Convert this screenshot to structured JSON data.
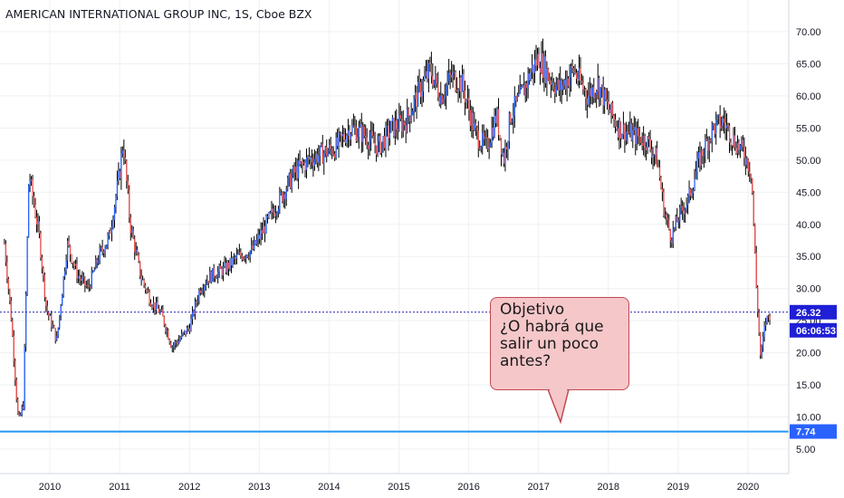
{
  "title": "AMERICAN INTERNATIONAL GROUP INC, 1S, Cboe BZX",
  "colors": {
    "up": "#2962ff",
    "down": "#ef5350",
    "wick": "#000000",
    "grid": "#eef0f3",
    "hline": "#2196f3",
    "priceline": "#1f1fb8",
    "tag": "#2962ff",
    "tag_dark": "#1f1fd6"
  },
  "price_tag": {
    "value": "26.32",
    "time": "06:06:53"
  },
  "level_tag": {
    "value": "7.74"
  },
  "callout": {
    "lines": [
      "Objetivo",
      "¿O habrá que",
      "salir un poco",
      "antes?"
    ]
  },
  "chart_data": {
    "type": "candlestick",
    "title": "AMERICAN INTERNATIONAL GROUP INC, 1S, Cboe BZX",
    "ylim": [
      0,
      75
    ],
    "y_ticks": [
      "5.00",
      "10.00",
      "15.00",
      "20.00",
      "25.00",
      "30.00",
      "35.00",
      "40.00",
      "45.00",
      "50.00",
      "55.00",
      "60.00",
      "65.00",
      "70.00"
    ],
    "x_ticks": [
      "2010",
      "2011",
      "2012",
      "2013",
      "2014",
      "2015",
      "2016",
      "2017",
      "2018",
      "2019",
      "2020"
    ],
    "current_price": 26.32,
    "horizontal_level": 7.74,
    "price_path": [
      [
        2009.35,
        37
      ],
      [
        2009.45,
        25
      ],
      [
        2009.55,
        9
      ],
      [
        2009.62,
        12
      ],
      [
        2009.7,
        48
      ],
      [
        2009.85,
        38
      ],
      [
        2009.95,
        27
      ],
      [
        2010.1,
        22
      ],
      [
        2010.25,
        37
      ],
      [
        2010.4,
        32
      ],
      [
        2010.55,
        30
      ],
      [
        2010.7,
        35
      ],
      [
        2010.85,
        38
      ],
      [
        2011.0,
        48
      ],
      [
        2011.05,
        53
      ],
      [
        2011.15,
        40
      ],
      [
        2011.3,
        32
      ],
      [
        2011.45,
        28
      ],
      [
        2011.6,
        26
      ],
      [
        2011.75,
        21
      ],
      [
        2011.85,
        22
      ],
      [
        2012.0,
        24
      ],
      [
        2012.15,
        30
      ],
      [
        2012.3,
        32
      ],
      [
        2012.5,
        33
      ],
      [
        2012.7,
        35
      ],
      [
        2012.9,
        36
      ],
      [
        2013.1,
        40
      ],
      [
        2013.3,
        44
      ],
      [
        2013.5,
        48
      ],
      [
        2013.7,
        50
      ],
      [
        2013.9,
        51
      ],
      [
        2014.1,
        52
      ],
      [
        2014.3,
        55
      ],
      [
        2014.5,
        54
      ],
      [
        2014.7,
        52
      ],
      [
        2014.9,
        55
      ],
      [
        2015.1,
        56
      ],
      [
        2015.3,
        61
      ],
      [
        2015.45,
        64
      ],
      [
        2015.6,
        60
      ],
      [
        2015.75,
        63
      ],
      [
        2015.9,
        62
      ],
      [
        2016.1,
        54
      ],
      [
        2016.25,
        52
      ],
      [
        2016.4,
        57
      ],
      [
        2016.5,
        50
      ],
      [
        2016.6,
        57
      ],
      [
        2016.75,
        60
      ],
      [
        2016.9,
        64
      ],
      [
        2017.0,
        66
      ],
      [
        2017.15,
        63
      ],
      [
        2017.3,
        61
      ],
      [
        2017.5,
        64
      ],
      [
        2017.7,
        60
      ],
      [
        2017.85,
        62
      ],
      [
        2018.0,
        58
      ],
      [
        2018.15,
        55
      ],
      [
        2018.35,
        54
      ],
      [
        2018.55,
        53
      ],
      [
        2018.7,
        50
      ],
      [
        2018.8,
        42
      ],
      [
        2018.9,
        38
      ],
      [
        2019.0,
        41
      ],
      [
        2019.15,
        44
      ],
      [
        2019.3,
        50
      ],
      [
        2019.5,
        55
      ],
      [
        2019.65,
        56
      ],
      [
        2019.8,
        53
      ],
      [
        2019.95,
        51
      ],
      [
        2020.05,
        48
      ],
      [
        2020.12,
        30
      ],
      [
        2020.18,
        19
      ],
      [
        2020.25,
        25
      ],
      [
        2020.32,
        26
      ]
    ]
  }
}
